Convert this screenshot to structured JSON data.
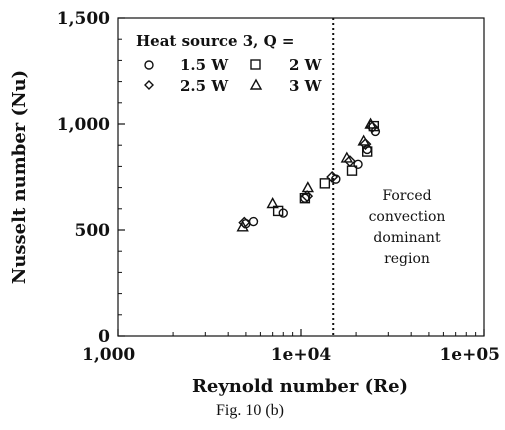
{
  "chart_data": {
    "type": "scatter",
    "xscale": "log",
    "xlim": [
      1000,
      100000
    ],
    "ylim": [
      0,
      1500
    ],
    "xticks": [
      1000,
      10000,
      100000
    ],
    "xtick_labels": [
      "1,000",
      "1e+04",
      "1e+05"
    ],
    "yticks": [
      0,
      500,
      1000,
      1500
    ],
    "ytick_labels": [
      "0",
      "500",
      "1,000",
      "1,500"
    ],
    "xlabel": "Reynold number (Re)",
    "ylabel": "Nusselt number (Nu)",
    "grid": false,
    "legend_title": "Heat source 3, Q =",
    "legend_placement": "top-left",
    "series": [
      {
        "name": "1.5 W",
        "marker": "circle",
        "x": [
          5000,
          5500,
          8000,
          10500,
          15500,
          20500,
          23000,
          25500
        ],
        "y": [
          530,
          540,
          580,
          650,
          740,
          810,
          880,
          965
        ]
      },
      {
        "name": "2 W",
        "marker": "square",
        "x": [
          7500,
          10500,
          13500,
          19000,
          23000,
          25000
        ],
        "y": [
          590,
          650,
          720,
          780,
          870,
          990
        ]
      },
      {
        "name": "2.5 W",
        "marker": "diamond",
        "x": [
          4900,
          10800,
          14800,
          18500,
          22500,
          24500
        ],
        "y": [
          535,
          660,
          750,
          825,
          905,
          985
        ]
      },
      {
        "name": "3 W",
        "marker": "triangle",
        "x": [
          4800,
          7000,
          10900,
          17800,
          22000,
          24000
        ],
        "y": [
          515,
          625,
          700,
          840,
          920,
          1000
        ]
      }
    ],
    "reference_line": {
      "x": 15000,
      "style": "dotted"
    },
    "annotation": [
      "Forced",
      "convection",
      "dominant",
      "region"
    ]
  },
  "caption": "Fig. 10 (b)"
}
